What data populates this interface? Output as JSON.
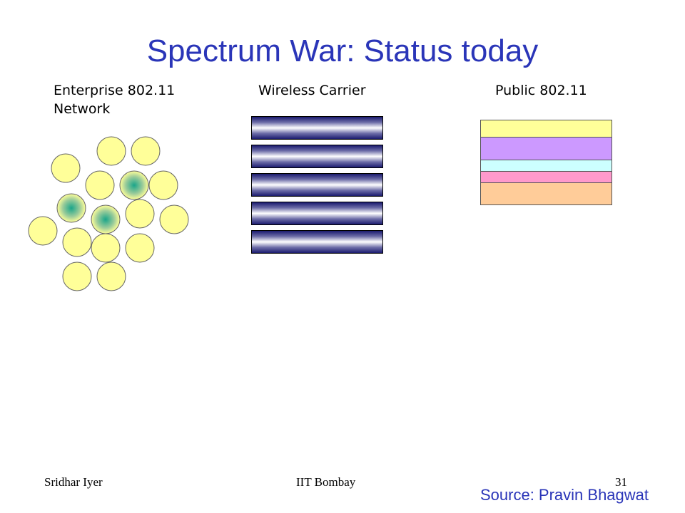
{
  "slide": {
    "title": "Spectrum War: Status today",
    "columns": {
      "enterprise_line1": "Enterprise 802.11",
      "enterprise_line2": "Network",
      "carrier": "Wireless Carrier",
      "public": "Public 802.11"
    },
    "public_band_colors": [
      "#ffff99",
      "#cc99ff",
      "#ccffff",
      "#ff99cc",
      "#ffcc99"
    ],
    "cell_fill": "#ffff99",
    "access_point_color": "#1aa58a",
    "title_color": "#2a35b8"
  },
  "footer": {
    "author": "Sridhar Iyer",
    "institution": "IIT Bombay",
    "page": "31",
    "source": "Source: Pravin Bhagwat"
  }
}
